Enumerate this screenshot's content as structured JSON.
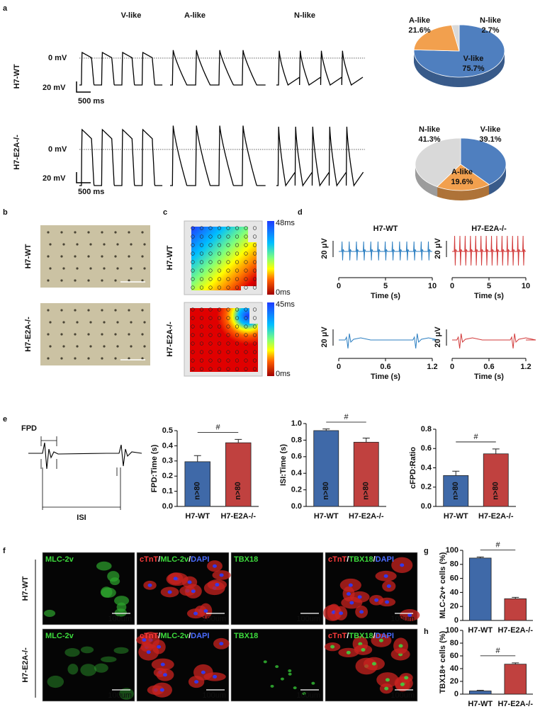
{
  "panel_labels": [
    "a",
    "b",
    "c",
    "d",
    "e",
    "f",
    "g",
    "h"
  ],
  "a": {
    "columns": [
      "V-like",
      "A-like",
      "N-like"
    ],
    "rows": [
      {
        "label": "H7-WT",
        "zero": "0 mV",
        "scale_v": "20 mV",
        "scale_t": "500 ms"
      },
      {
        "label": "H7-E2A-/-",
        "zero": "0 mV",
        "scale_v": "20 mV",
        "scale_t": "500 ms"
      }
    ]
  },
  "b": {
    "rows": [
      "H7-WT",
      "H7-E2A-/-"
    ]
  },
  "c": {
    "rows": [
      {
        "label": "H7-WT",
        "max": "48ms",
        "min": "0ms"
      },
      {
        "label": "H7-E2A-/-",
        "max": "45ms",
        "min": "0ms"
      }
    ]
  },
  "d": {
    "columns": [
      {
        "title": "H7-WT",
        "color": "#2b7ec1",
        "traces": [
          {
            "scale": "20 μV",
            "xlabel": "Time (s)",
            "xlim": [
              0,
              10
            ],
            "xticks": [
              0,
              5,
              10
            ]
          },
          {
            "scale": "20 μV",
            "xlabel": "Time (s)",
            "xlim": [
              0,
              1.2
            ],
            "xticks": [
              0,
              0.6,
              1.2
            ]
          }
        ]
      },
      {
        "title": "H7-E2A-/-",
        "color": "#d23a3a",
        "traces": [
          {
            "scale": "20 μV",
            "xlabel": "Time (s)",
            "xlim": [
              0,
              10
            ],
            "xticks": [
              0,
              5,
              10
            ]
          },
          {
            "scale": "20 μV",
            "xlabel": "Time (s)",
            "xlim": [
              0,
              1.2
            ],
            "xticks": [
              0,
              0.6,
              1.2
            ]
          }
        ]
      }
    ]
  },
  "e": {
    "fpd": "FPD",
    "isi": "ISI"
  },
  "f": {
    "rows": [
      {
        "label": "H7-WT",
        "images": [
          {
            "label": [
              {
                "t": "MLC-2v",
                "c": "#3ddc3d"
              }
            ],
            "scale": "100um"
          },
          {
            "label": [
              {
                "t": "cTnT",
                "c": "#ff3b3b"
              },
              {
                "t": "/",
                "c": "#ffffff"
              },
              {
                "t": "MLC-2v",
                "c": "#3ddc3d"
              },
              {
                "t": "/",
                "c": "#ffffff"
              },
              {
                "t": "DAPI",
                "c": "#4a6cff"
              }
            ],
            "scale": "100um"
          },
          {
            "label": [
              {
                "t": "TBX18",
                "c": "#3ddc3d"
              }
            ],
            "scale": "100um"
          },
          {
            "label": [
              {
                "t": "cTnT",
                "c": "#ff3b3b"
              },
              {
                "t": "/",
                "c": "#ffffff"
              },
              {
                "t": "TBX18",
                "c": "#3ddc3d"
              },
              {
                "t": "/",
                "c": "#ffffff"
              },
              {
                "t": "DAPI",
                "c": "#4a6cff"
              }
            ],
            "scale": "100um"
          }
        ]
      },
      {
        "label": "H7-E2A-/-",
        "images": [
          {
            "label": [
              {
                "t": "MLC-2v",
                "c": "#3ddc3d"
              }
            ],
            "scale": "100um"
          },
          {
            "label": [
              {
                "t": "cTnT",
                "c": "#ff3b3b"
              },
              {
                "t": "/",
                "c": "#ffffff"
              },
              {
                "t": "MLC-2v",
                "c": "#3ddc3d"
              },
              {
                "t": "/",
                "c": "#ffffff"
              },
              {
                "t": "DAPI",
                "c": "#4a6cff"
              }
            ],
            "scale": "100um"
          },
          {
            "label": [
              {
                "t": "TBX18",
                "c": "#3ddc3d"
              }
            ],
            "scale": "100um"
          },
          {
            "label": [
              {
                "t": "cTnT",
                "c": "#ff3b3b"
              },
              {
                "t": "/",
                "c": "#ffffff"
              },
              {
                "t": "TBX18",
                "c": "#3ddc3d"
              },
              {
                "t": "/",
                "c": "#ffffff"
              },
              {
                "t": "DAPI",
                "c": "#4a6cff"
              }
            ],
            "scale": "100um"
          }
        ]
      }
    ]
  },
  "chart_data": [
    {
      "type": "pie",
      "labels": [
        "V-like",
        "A-like",
        "N-like"
      ],
      "values": [
        75.7,
        21.6,
        2.7
      ],
      "value_labels": [
        "75.7%",
        "21.6%",
        "2.7%"
      ],
      "colors": [
        "#4f7fbf",
        "#f2a04e",
        "#d9d9d9"
      ]
    },
    {
      "type": "pie",
      "labels": [
        "V-like",
        "A-like",
        "N-like"
      ],
      "values": [
        39.1,
        19.6,
        41.3
      ],
      "value_labels": [
        "39.1%",
        "19.6%",
        "41.3%"
      ],
      "colors": [
        "#4f7fbf",
        "#f2a04e",
        "#d9d9d9"
      ]
    },
    {
      "type": "bar",
      "ylabel": "FPD:Time (s)",
      "categories": [
        "H7-WT",
        "H7-E2A-/-"
      ],
      "values": [
        0.295,
        0.42
      ],
      "errors": [
        0.04,
        0.022
      ],
      "bar_text": [
        "n>80",
        "n>80"
      ],
      "annotation": "#",
      "colors": [
        "#3f69a8",
        "#c0413f"
      ],
      "ylim": [
        0,
        0.5
      ],
      "yticks": [
        {
          "value": 0,
          "label": "0.0"
        },
        0.1,
        0.2,
        0.3,
        0.4,
        0.5
      ]
    },
    {
      "type": "bar",
      "ylabel": "ISI:Time (s)",
      "categories": [
        "H7-WT",
        "H7-E2A-/-"
      ],
      "values": [
        0.915,
        0.775
      ],
      "errors": [
        0.02,
        0.05
      ],
      "bar_text": [
        "n>80",
        "n>80"
      ],
      "annotation": "#",
      "colors": [
        "#3f69a8",
        "#c0413f"
      ],
      "ylim": [
        0,
        1.0
      ],
      "yticks": [
        {
          "value": 0,
          "label": "0.0"
        },
        0.2,
        0.4,
        0.6,
        0.8,
        {
          "value": 1.0,
          "label": "1.0"
        }
      ]
    },
    {
      "type": "bar",
      "ylabel": "cFPD:Ratio",
      "categories": [
        "H7-WT",
        "H7-E2A-/-"
      ],
      "values": [
        0.32,
        0.545
      ],
      "errors": [
        0.045,
        0.05
      ],
      "bar_text": [
        "n>80",
        "n>80"
      ],
      "annotation": "#",
      "colors": [
        "#3f69a8",
        "#c0413f"
      ],
      "ylim": [
        0,
        0.8
      ],
      "yticks": [
        {
          "value": 0,
          "label": "0.0"
        },
        0.2,
        0.4,
        0.6,
        0.8
      ]
    },
    {
      "type": "bar",
      "ylabel": "MLC-2v+ cells (%)",
      "categories": [
        "H7-WT",
        "H7-E2A-/-"
      ],
      "values": [
        89,
        31
      ],
      "errors": [
        1.5,
        2
      ],
      "annotation": "#",
      "colors": [
        "#3f69a8",
        "#c0413f"
      ],
      "ylim": [
        0,
        100
      ],
      "yticks": [
        0,
        20,
        40,
        60,
        80,
        100
      ]
    },
    {
      "type": "bar",
      "ylabel": "TBX18+ cells (%)",
      "categories": [
        "H7-WT",
        "H7-E2A-/-"
      ],
      "values": [
        5,
        47
      ],
      "errors": [
        1,
        2
      ],
      "annotation": "#",
      "colors": [
        "#3f69a8",
        "#c0413f"
      ],
      "ylim": [
        0,
        100
      ],
      "yticks": [
        0,
        20,
        40,
        60,
        80,
        100
      ]
    }
  ]
}
